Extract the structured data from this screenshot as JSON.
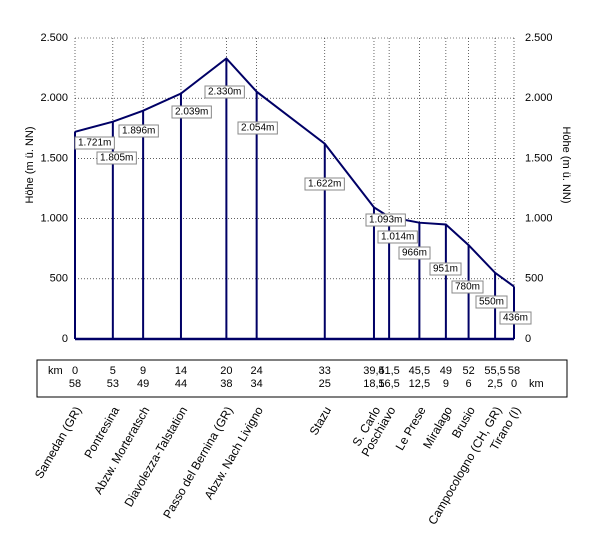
{
  "chart_data": {
    "type": "line",
    "y_axis_label": "Höhe (m ü. NN)",
    "km_unit": "km",
    "categories": [
      "Samedan (GR)",
      "Pontresina",
      "Abzw. Morteratsch",
      "Diavolezza-Talstation",
      "Passo del Bernina (GR)",
      "Abzw. Nach Livigno",
      "Stazu",
      "S. Carlo",
      "Poschiavo",
      "Le Prese",
      "Miralago",
      "Brusio",
      "Campocologno (CH, GR)",
      "Tirano (I)"
    ],
    "x": [
      0,
      5,
      9,
      14,
      20,
      24,
      33,
      {
        "value": 39.5,
        "label": "39,5"
      },
      {
        "value": 41.5,
        "label": "41,5"
      },
      {
        "value": 45.5,
        "label": "45,5"
      },
      49,
      52,
      {
        "value": 55.5,
        "label": "55,5"
      },
      58
    ],
    "km_remaining": [
      58,
      53,
      49,
      44,
      38,
      34,
      25,
      {
        "value": 18.5,
        "label": "18,5"
      },
      {
        "value": 16.5,
        "label": "16,5"
      },
      {
        "value": 12.5,
        "label": "12,5"
      },
      9,
      6,
      {
        "value": 2.5,
        "label": "2,5"
      },
      0
    ],
    "values": [
      1721,
      1805,
      1896,
      2039,
      2330,
      2054,
      1622,
      1093,
      1014,
      966,
      951,
      780,
      550,
      436
    ],
    "value_labels": [
      "1.721m",
      "1.805m",
      "1.896m",
      "2.039m",
      "2.330m",
      "2.054m",
      "1.622m",
      "1.093m",
      "1.014m",
      "966m",
      "951m",
      "780m",
      "550m",
      "436m"
    ],
    "color": "#000066",
    "xlim": [
      0,
      58
    ],
    "ylim": [
      0,
      2500
    ],
    "yticks": [
      0,
      500,
      {
        "value": 1000,
        "label": "1.000"
      },
      {
        "value": 1500,
        "label": "1.500"
      },
      {
        "value": 2000,
        "label": "2.000"
      },
      {
        "value": 2500,
        "label": "2.500"
      }
    ],
    "grid": true
  }
}
